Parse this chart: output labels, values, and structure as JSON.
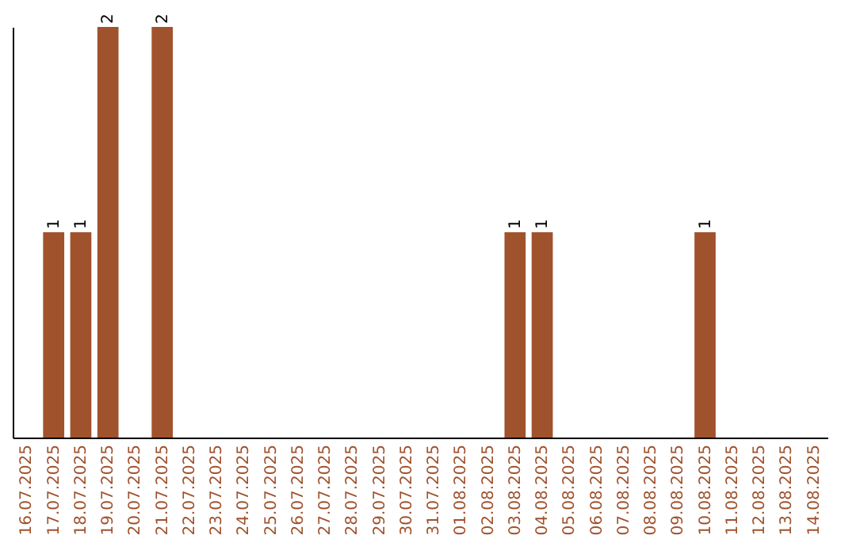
{
  "chart_data": {
    "type": "bar",
    "categories": [
      "16.07.2025",
      "17.07.2025",
      "18.07.2025",
      "19.07.2025",
      "20.07.2025",
      "21.07.2025",
      "22.07.2025",
      "23.07.2025",
      "24.07.2025",
      "25.07.2025",
      "26.07.2025",
      "27.07.2025",
      "28.07.2025",
      "29.07.2025",
      "30.07.2025",
      "31.07.2025",
      "01.08.2025",
      "02.08.2025",
      "03.08.2025",
      "04.08.2025",
      "05.08.2025",
      "06.08.2025",
      "07.08.2025",
      "08.08.2025",
      "09.08.2025",
      "10.08.2025",
      "11.08.2025",
      "12.08.2025",
      "13.08.2025",
      "14.08.2025"
    ],
    "values": [
      0,
      1,
      1,
      2,
      0,
      2,
      0,
      0,
      0,
      0,
      0,
      0,
      0,
      0,
      0,
      0,
      0,
      0,
      1,
      1,
      0,
      0,
      0,
      0,
      0,
      1,
      0,
      0,
      0,
      0
    ],
    "value_labels": [
      null,
      "1",
      "1",
      "2",
      null,
      "2",
      null,
      null,
      null,
      null,
      null,
      null,
      null,
      null,
      null,
      null,
      null,
      null,
      "1",
      "1",
      null,
      null,
      null,
      null,
      null,
      "1",
      null,
      null,
      null,
      null
    ],
    "color": "#a0522d",
    "grid": false,
    "tick_labels": "x"
  }
}
